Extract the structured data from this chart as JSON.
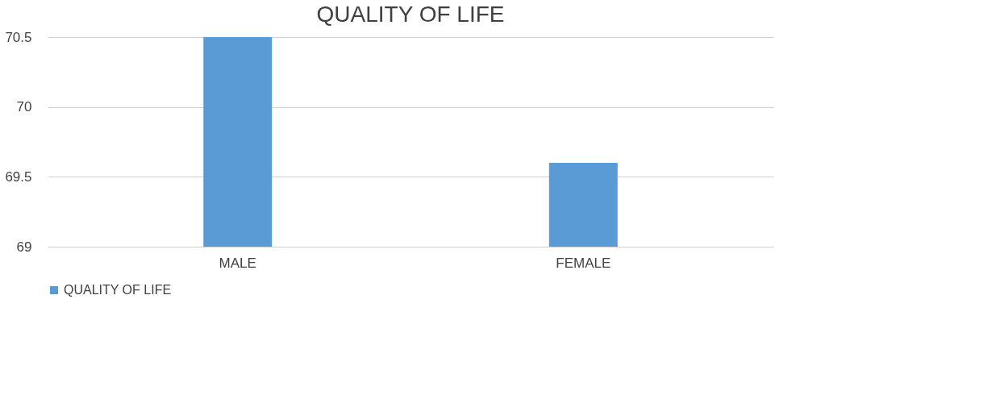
{
  "chart_data": {
    "type": "bar",
    "title": "QUALITY OF LIFE",
    "categories": [
      "MALE",
      "FEMALE"
    ],
    "series": [
      {
        "name": "QUALITY OF LIFE",
        "color": "#5b9bd5",
        "values": [
          70.5,
          69.6
        ]
      }
    ],
    "ylim": [
      69,
      70.5
    ],
    "yticks": [
      69,
      69.5,
      70,
      70.5
    ],
    "grid": "y",
    "legend": "bottom"
  }
}
